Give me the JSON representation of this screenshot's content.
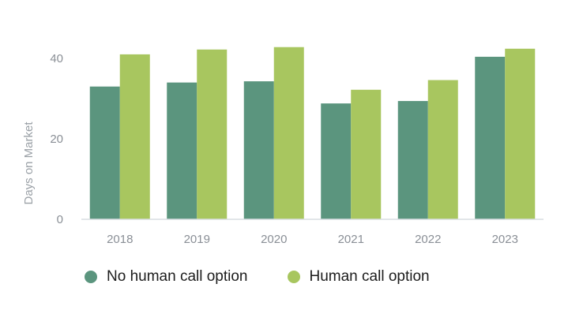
{
  "chart_data": {
    "type": "bar",
    "categories": [
      "2018",
      "2019",
      "2020",
      "2021",
      "2022",
      "2023"
    ],
    "series": [
      {
        "name": "No human call option",
        "values": [
          33,
          34,
          34.3,
          28.8,
          29.4,
          40.4
        ],
        "color": "#5b957e"
      },
      {
        "name": "Human call option",
        "values": [
          41,
          42.2,
          42.8,
          32.2,
          34.6,
          42.4
        ],
        "color": "#a8c65f"
      }
    ],
    "xlabel": "",
    "ylabel": "Days on Market",
    "ylim": [
      0,
      45
    ],
    "yticks": [
      0,
      20,
      40
    ],
    "grid": false,
    "legend_position": "bottom-left"
  }
}
